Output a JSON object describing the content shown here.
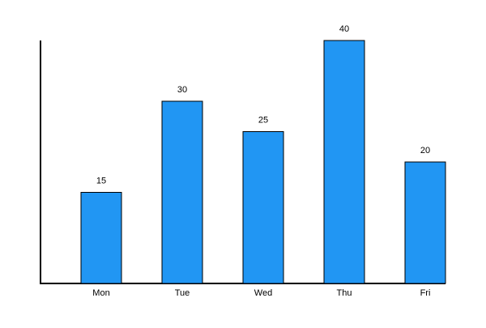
{
  "chart_data": {
    "type": "bar",
    "categories": [
      "Mon",
      "Tue",
      "Wed",
      "Thu",
      "Fri"
    ],
    "values": [
      15,
      30,
      25,
      40,
      20
    ],
    "color": "#2196f3",
    "ylim": [
      0,
      40
    ]
  }
}
